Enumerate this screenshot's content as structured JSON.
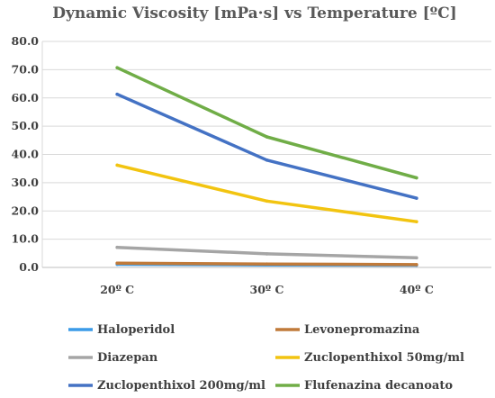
{
  "chart_data": {
    "type": "line",
    "title": "Dynamic Viscosity [mPa·s] vs Temperature [ºC]",
    "categories": [
      "20º C",
      "30º C",
      "40º C"
    ],
    "ylim": [
      0,
      80
    ],
    "yticks": [
      "0.0",
      "10.0",
      "20.0",
      "30.0",
      "40.0",
      "50.0",
      "60.0",
      "70.0",
      "80.0"
    ],
    "grid": "horizontal",
    "legend_position": "bottom",
    "series": [
      {
        "name": "Haloperidol",
        "color": "#3b9be8",
        "values": [
          1.1,
          0.9,
          0.8
        ]
      },
      {
        "name": "Levonepromazina",
        "color": "#c07a3a",
        "values": [
          1.5,
          1.2,
          1.0
        ]
      },
      {
        "name": "Diazepan",
        "color": "#a5a5a5",
        "values": [
          7.1,
          4.8,
          3.4
        ]
      },
      {
        "name": "Zuclopenthixol 50mg/ml",
        "color": "#f2c410",
        "values": [
          36.2,
          23.5,
          16.2
        ]
      },
      {
        "name": "Zuclopenthixol 200mg/ml",
        "color": "#4472c4",
        "values": [
          61.3,
          38.0,
          24.5
        ]
      },
      {
        "name": "Flufenazina decanoato",
        "color": "#70ad47",
        "values": [
          70.7,
          46.2,
          31.7
        ]
      }
    ]
  }
}
